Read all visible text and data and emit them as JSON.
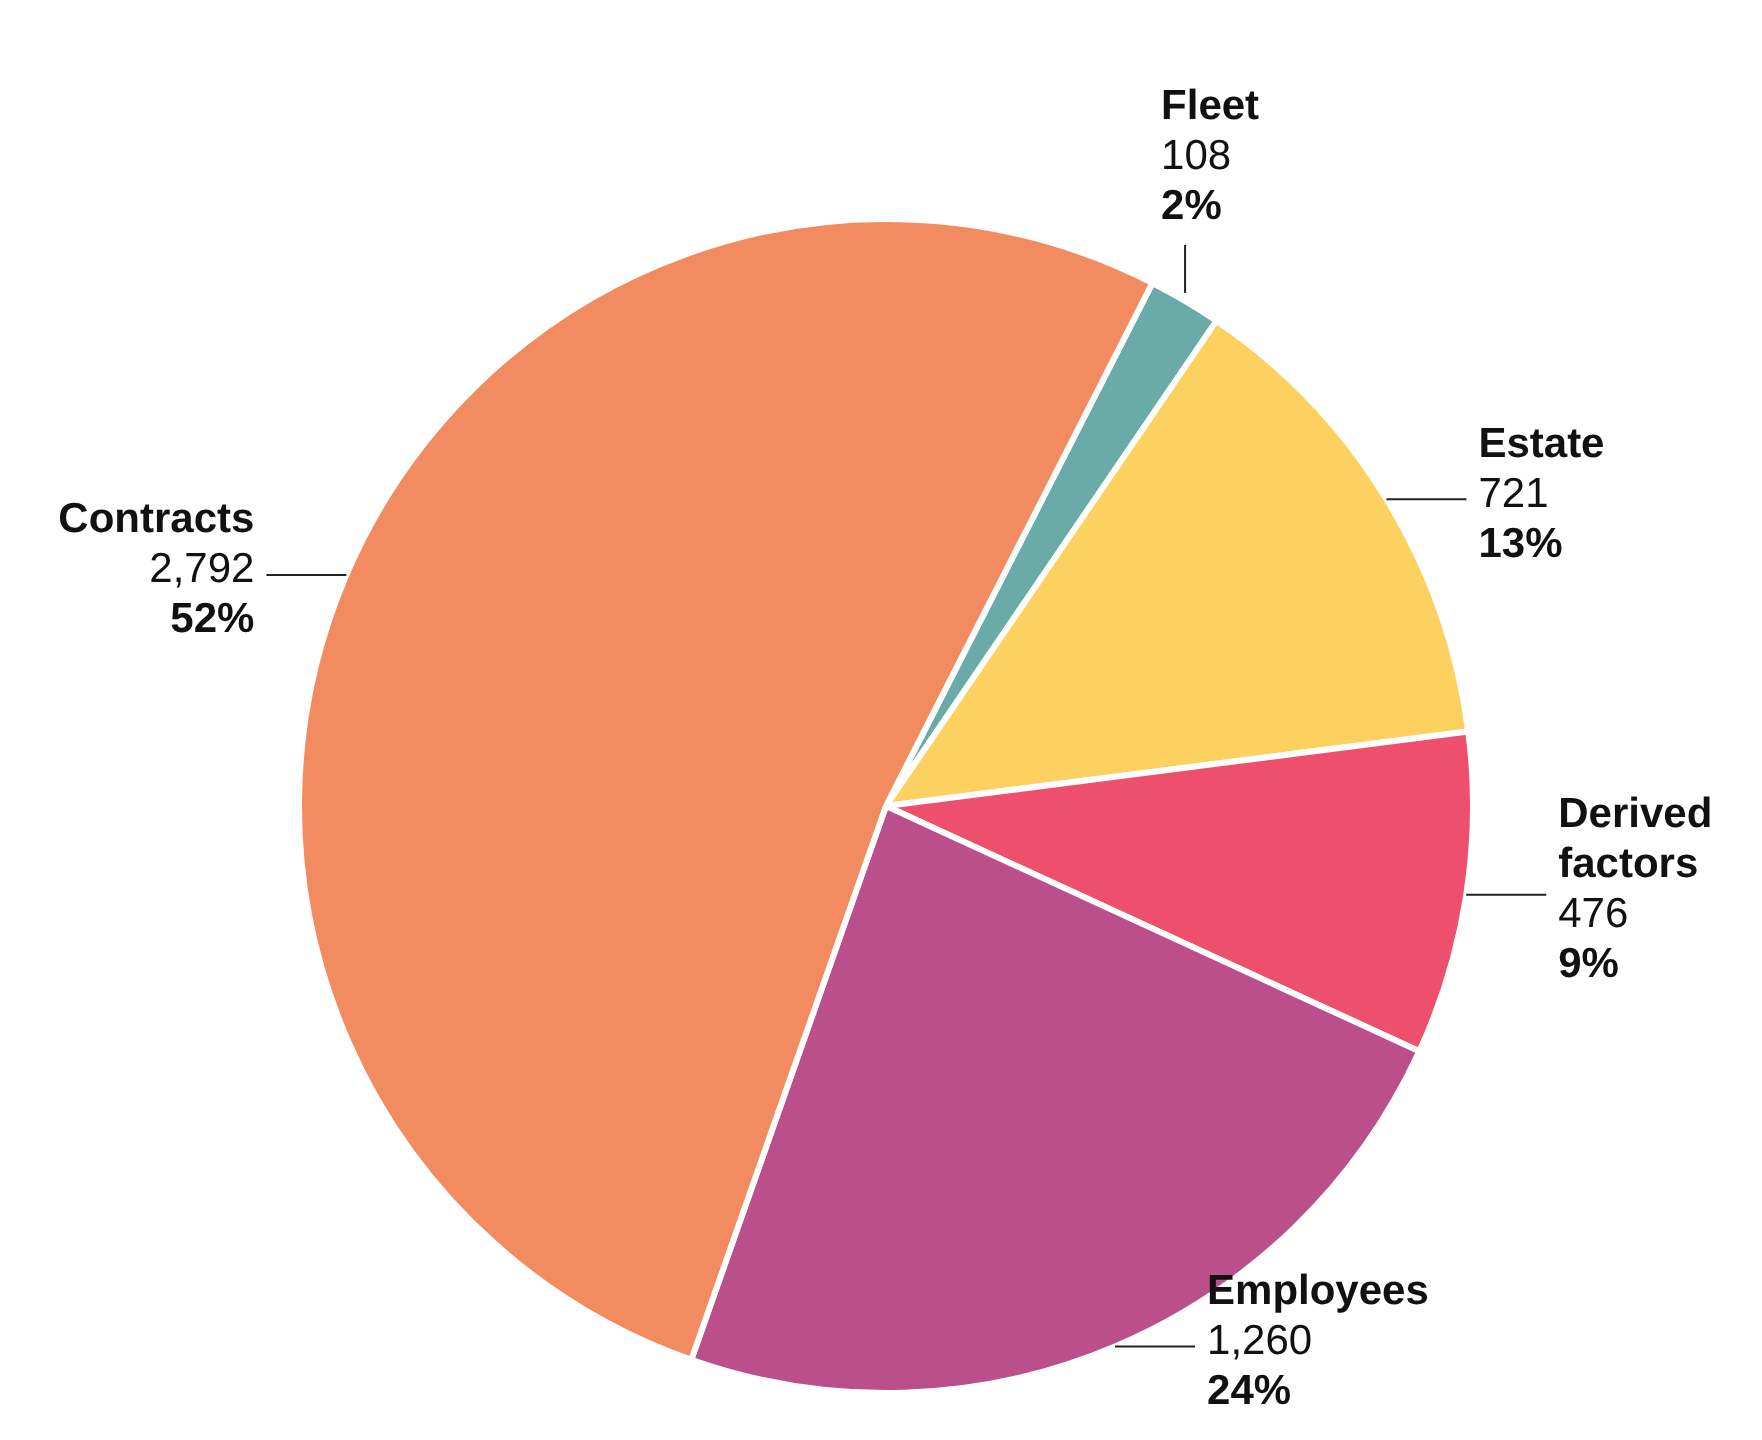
{
  "chart_data": {
    "type": "pie",
    "categories": [
      "Fleet",
      "Estate",
      "Derived factors",
      "Employees",
      "Contracts"
    ],
    "values": [
      108,
      721,
      476,
      1260,
      2792
    ],
    "colors": [
      "#6aabaa",
      "#fdd160",
      "#ee4f6d",
      "#bb4f8b",
      "#f38b60"
    ],
    "value_labels": [
      "108\n2%",
      "721\n13%",
      "476\n9%",
      "1,260\n24%",
      "2,792\n52%"
    ],
    "legend": false
  }
}
